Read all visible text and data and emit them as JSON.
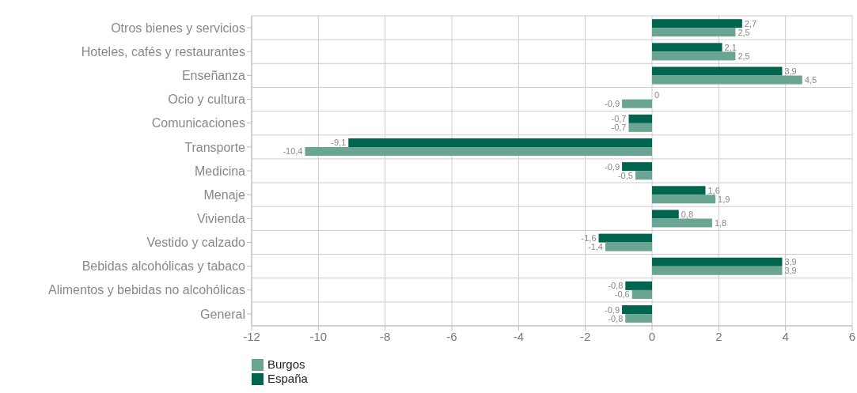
{
  "chart_data": {
    "type": "bar",
    "orientation": "horizontal",
    "categories": [
      "Otros bienes y servicios",
      "Hoteles, cafés y restaurantes",
      "Enseñanza",
      "Ocio y cultura",
      "Comunicaciones",
      "Transporte",
      "Medicina",
      "Menaje",
      "Vivienda",
      "Vestido y calzado",
      "Bebidas alcohólicas y tabaco",
      "Alimentos y bebidas no alcohólicas",
      "General"
    ],
    "series": [
      {
        "name": "España",
        "color": "#00654e",
        "values": [
          2.7,
          2.1,
          3.9,
          0,
          -0.7,
          -9.1,
          -0.9,
          1.6,
          0.8,
          -1.6,
          3.9,
          -0.8,
          -0.9
        ],
        "value_labels": [
          "2,7",
          "2,1",
          "3,9",
          "0",
          "-0,7",
          "-9,1",
          "-0,9",
          "1,6",
          "0,8",
          "-1,6",
          "3,9",
          "-0,8",
          "-0,9"
        ]
      },
      {
        "name": "Burgos",
        "color": "#6aa493",
        "values": [
          2.5,
          2.5,
          4.5,
          -0.9,
          -0.7,
          -10.4,
          -0.5,
          1.9,
          1.8,
          -1.4,
          3.9,
          -0.6,
          -0.8
        ],
        "value_labels": [
          "2,5",
          "2,5",
          "4,5",
          "-0,9",
          "-0,7",
          "-10,4",
          "-0,5",
          "1,9",
          "1,8",
          "-1,4",
          "3,9",
          "-0,6",
          "-0,8"
        ]
      }
    ],
    "xlim": [
      -12,
      6
    ],
    "xticks": [
      {
        "value": -12,
        "label": "-12"
      },
      {
        "value": -10,
        "label": "-10"
      },
      {
        "value": -8,
        "label": "-8"
      },
      {
        "value": -6,
        "label": "-6"
      },
      {
        "value": -4,
        "label": "-4"
      },
      {
        "value": -2,
        "label": "-2"
      },
      0,
      2,
      4,
      6
    ],
    "grid": true,
    "legend": "bottom left"
  }
}
